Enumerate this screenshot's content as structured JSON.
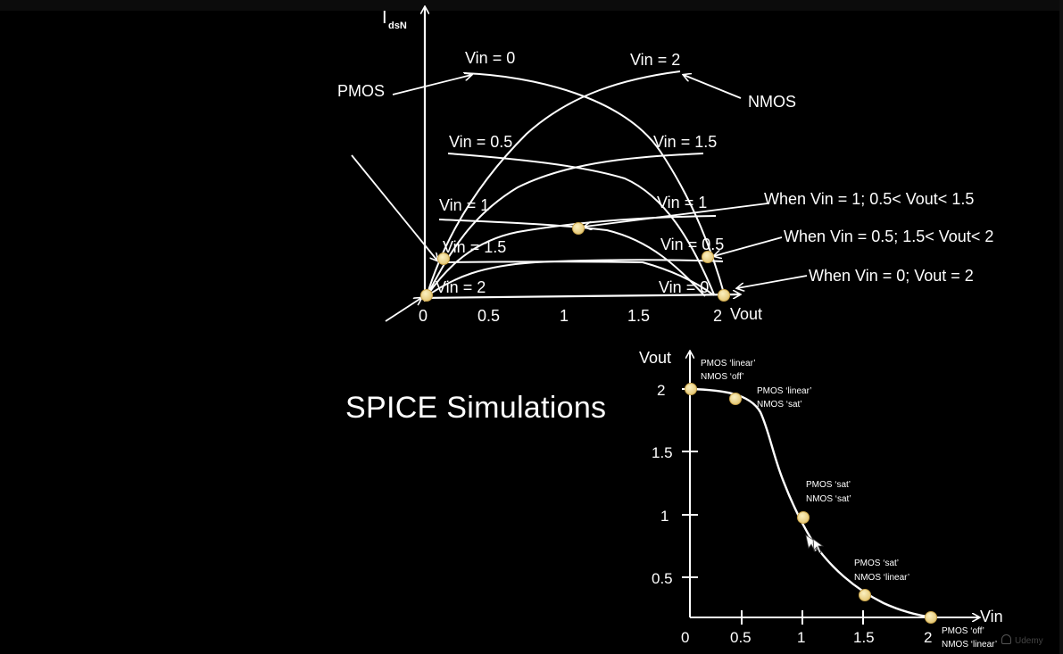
{
  "top_diagram": {
    "y_axis_label": "I",
    "y_axis_sub": "dsN",
    "x_axis_label": "Vout",
    "x_ticks": [
      "0",
      "0.5",
      "1",
      "1.5",
      "2"
    ],
    "pmos_label": "PMOS",
    "nmos_label": "NMOS",
    "curve_labels": {
      "pmos_vin0": "Vin = 0",
      "nmos_vin2": "Vin = 2",
      "pmos_vin05": "Vin = 0.5",
      "nmos_vin15": "Vin = 1.5",
      "pmos_vin1": "Vin = 1",
      "nmos_vin1": "Vin = 1",
      "pmos_vin15": "Vin = 1.5",
      "nmos_vin05": "Vin = 0.5",
      "pmos_vin2": "Vin = 2",
      "nmos_vin0": "Vin = 0"
    },
    "annotations": [
      "When Vin = 1; 0.5< Vout< 1.5",
      "When Vin = 0.5; 1.5< Vout< 2",
      "When Vin = 0; Vout = 2"
    ]
  },
  "title": "SPICE Simulations",
  "vtc_chart": {
    "y_axis_label": "Vout",
    "x_axis_label": "Vin",
    "x_ticks": [
      "0",
      "0.5",
      "1",
      "1.5",
      "2"
    ],
    "y_ticks": [
      "0.5",
      "1",
      "1.5",
      "2"
    ],
    "points": [
      {
        "vin": 0,
        "vout": 2,
        "note1": "PMOS ‘linear’",
        "note2": "NMOS ‘off’"
      },
      {
        "vin": 0.4,
        "vout": 1.9,
        "note1": "PMOS ‘linear’",
        "note2": "NMOS ‘sat’"
      },
      {
        "vin": 1.0,
        "vout": 0.98,
        "note1": "PMOS ‘sat’",
        "note2": "NMOS ‘sat’"
      },
      {
        "vin": 1.5,
        "vout": 0.33,
        "note1": "PMOS ‘sat’",
        "note2": "NMOS ‘linear’"
      },
      {
        "vin": 2.05,
        "vout": 0.02,
        "note1": "PMOS ‘off’",
        "note2": "NMOS ‘linear’"
      }
    ],
    "colors": {
      "curve": "#ffffff",
      "marker": "#f2dd8f",
      "marker_edge": "#caa44a"
    }
  },
  "watermark": "Udemy"
}
